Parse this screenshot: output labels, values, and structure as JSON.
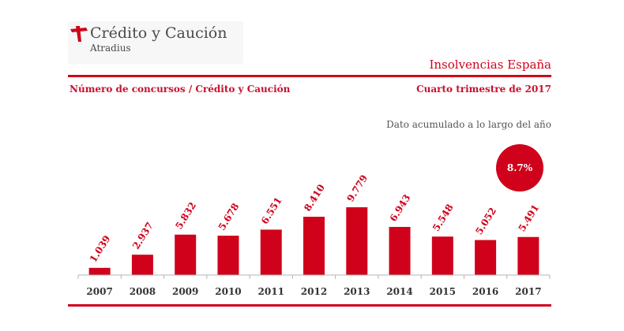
{
  "brand": {
    "name": "Crédito y Caución",
    "subname": "Atradius",
    "logo_icon": "crossed-check-logo-icon",
    "color": "#d0021b"
  },
  "header": {
    "report_title": "Insolvencias España",
    "subtitle": "Número de concursos  / Crédito y Caución",
    "period": "Cuarto trimestre de  2017"
  },
  "note": "Dato acumulado a lo largo del año",
  "badge": {
    "value": "8.7%"
  },
  "chart_data": {
    "type": "bar",
    "categories": [
      "2007",
      "2008",
      "2009",
      "2010",
      "2011",
      "2012",
      "2013",
      "2014",
      "2015",
      "2016",
      "2017"
    ],
    "values": [
      1039,
      2937,
      5832,
      5678,
      6551,
      8410,
      9779,
      6943,
      5548,
      5052,
      5491
    ],
    "value_labels": [
      "1.039",
      "2.937",
      "5.832",
      "5.678",
      "6.551",
      "8.410",
      "9.779",
      "6.943",
      "5.548",
      "5.052",
      "5.491"
    ],
    "ylim": [
      0,
      9779
    ],
    "grid": false,
    "bar_color": "#d0021b"
  }
}
